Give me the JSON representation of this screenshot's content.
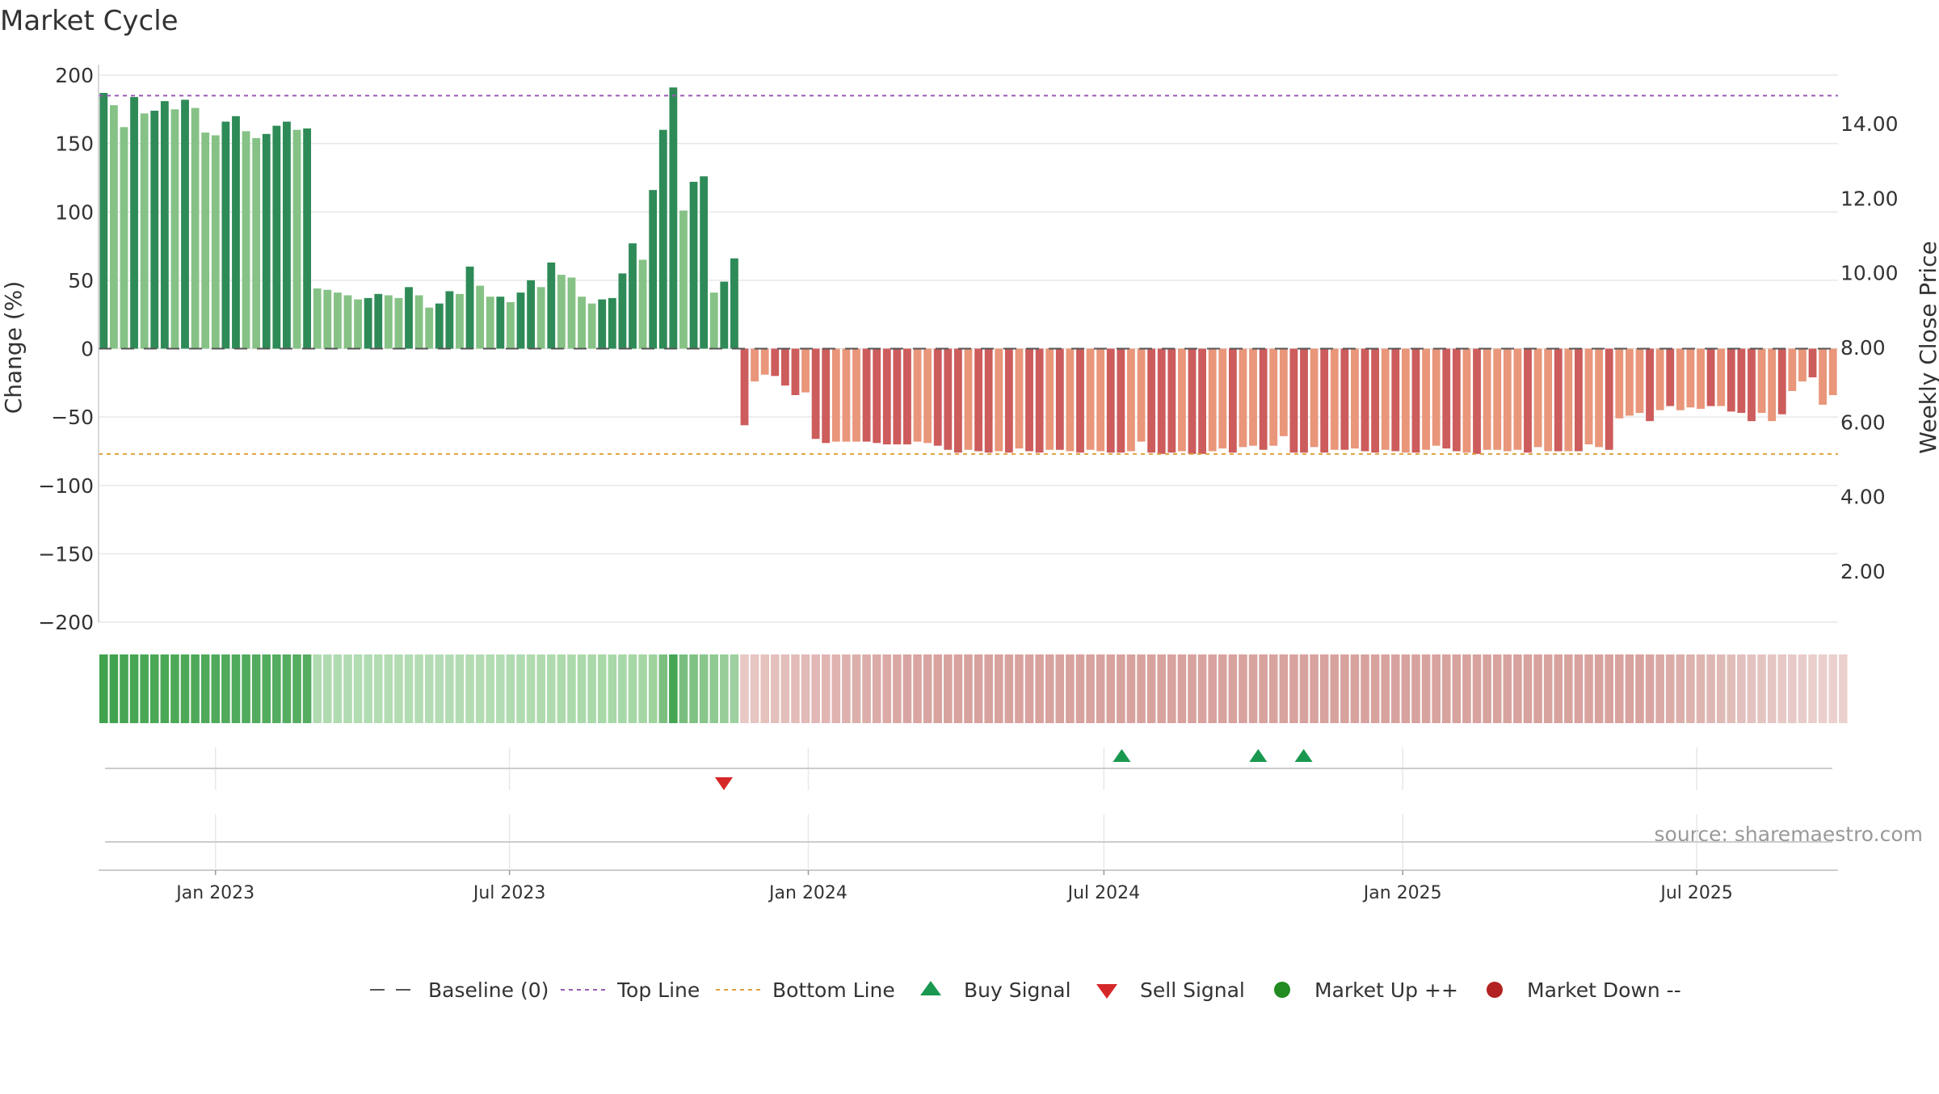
{
  "title": "Market Cycle",
  "source": "source: sharemaestro.com",
  "colors": {
    "up_dark": "#2e8b57",
    "up_light": "#86c286",
    "down_dark": "#cd5c5c",
    "down_light": "#e9967a",
    "top_line": "#9b59b6",
    "bottom_line": "#e0a040",
    "buy": "#1a9850",
    "sell": "#d62728",
    "market_up": "#228b22",
    "market_down": "#b22222",
    "grid": "#e8e8e8",
    "axis": "#cccccc"
  },
  "chart_data": {
    "type": "bar",
    "y_left": {
      "label": "Change (%)",
      "range": [
        -200,
        200
      ],
      "ticks": [
        200,
        150,
        100,
        50,
        0,
        -50,
        -100,
        -150,
        -200
      ],
      "tick_labels": [
        "200",
        "150",
        "100",
        "50",
        "0",
        "−50",
        "−100",
        "−150",
        "−200"
      ]
    },
    "y_right": {
      "label": "Weekly Close Price",
      "ticks": [
        14,
        12,
        10,
        8,
        6,
        4,
        2
      ],
      "tick_labels": [
        "14.00",
        "12.00",
        "10.00",
        "8.00",
        "6.00",
        "4.00",
        "2.00"
      ]
    },
    "x_ticks": [
      "Jan 2023",
      "Jul 2023",
      "Jan 2024",
      "Jul 2024",
      "Jan 2025",
      "Jul 2025"
    ],
    "x_tick_dates": [
      "2023-01-01",
      "2023-07-01",
      "2024-01-01",
      "2024-07-01",
      "2025-01-01",
      "2025-07-01"
    ],
    "x_start": "2022-10-21",
    "x_end": "2025-09-26",
    "top_line": 185,
    "bottom_line": -77,
    "baseline": 0,
    "grid": true,
    "series": [
      {
        "values": [
          187,
          178,
          162,
          184,
          172,
          174,
          181,
          175,
          182,
          176,
          158,
          156,
          166,
          170,
          159,
          154,
          157,
          163,
          166,
          160,
          161,
          44,
          43,
          41,
          39,
          36,
          37,
          40,
          39,
          37,
          45,
          39,
          30,
          33,
          42,
          40,
          60,
          46,
          38,
          38,
          34,
          41,
          50,
          45,
          63,
          54,
          52,
          38,
          33,
          36,
          37,
          55,
          77,
          65,
          116,
          160,
          191,
          101,
          122,
          126,
          41,
          49,
          66,
          -56,
          -24,
          -19,
          -20,
          -27,
          -34,
          -32,
          -66,
          -69,
          -68,
          -68,
          -68,
          -68,
          -69,
          -70,
          -70,
          -70,
          -68,
          -69,
          -71,
          -74,
          -76,
          -74,
          -75,
          -76,
          -75,
          -76,
          -73,
          -75,
          -76,
          -74,
          -74,
          -75,
          -76,
          -74,
          -75,
          -76,
          -76,
          -75,
          -68,
          -76,
          -77,
          -76,
          -75,
          -77,
          -77,
          -75,
          -73,
          -76,
          -72,
          -71,
          -74,
          -71,
          -64,
          -76,
          -76,
          -72,
          -76,
          -74,
          -74,
          -73,
          -75,
          -76,
          -74,
          -75,
          -76,
          -76,
          -74,
          -71,
          -73,
          -75,
          -76,
          -77,
          -74,
          -74,
          -75,
          -74,
          -76,
          -72,
          -75,
          -75,
          -75,
          -75,
          -70,
          -72,
          -74,
          -51,
          -49,
          -47,
          -53,
          -45,
          -42,
          -45,
          -43,
          -44,
          -42,
          -42,
          -46,
          -47,
          -53,
          -47,
          -53,
          -48,
          -31,
          -24,
          -21,
          -41,
          -34
        ],
        "shades": [
          1,
          0,
          0,
          1,
          0,
          1,
          1,
          0,
          1,
          0,
          0,
          0,
          1,
          1,
          0,
          0,
          1,
          1,
          1,
          0,
          1,
          0,
          0,
          0,
          0,
          0,
          1,
          1,
          0,
          0,
          1,
          0,
          0,
          1,
          1,
          0,
          1,
          0,
          0,
          1,
          0,
          1,
          1,
          0,
          1,
          0,
          0,
          0,
          0,
          1,
          1,
          1,
          1,
          0,
          1,
          1,
          1,
          0,
          1,
          1,
          0,
          1,
          1,
          1,
          0,
          0,
          1,
          1,
          1,
          0,
          1,
          1,
          0,
          0,
          0,
          1,
          1,
          1,
          1,
          1,
          0,
          0,
          1,
          1,
          1,
          0,
          1,
          1,
          0,
          1,
          0,
          1,
          1,
          0,
          1,
          0,
          1,
          0,
          0,
          1,
          1,
          0,
          0,
          1,
          1,
          1,
          0,
          1,
          1,
          0,
          0,
          1,
          0,
          0,
          1,
          0,
          0,
          1,
          1,
          0,
          1,
          0,
          1,
          0,
          1,
          1,
          0,
          1,
          0,
          1,
          0,
          0,
          1,
          1,
          0,
          1,
          0,
          0,
          0,
          0,
          1,
          0,
          0,
          1,
          0,
          1,
          0,
          0,
          1,
          0,
          0,
          0,
          1,
          0,
          1,
          0,
          0,
          0,
          1,
          0,
          1,
          1,
          1,
          0,
          0,
          1,
          0,
          0,
          1,
          0
        ]
      }
    ],
    "strip_colors": [
      "#3fa24c",
      "#42a34f",
      "#45a553",
      "#47a654",
      "#49a755",
      "#4aa856",
      "#4ba857",
      "#4ca958",
      "#4ca958",
      "#4da959",
      "#4ea95a",
      "#4faa5b",
      "#50aa5c",
      "#50ab5c",
      "#51ab5d",
      "#52ab5e",
      "#52ac5e",
      "#53ac5f",
      "#54ad60",
      "#54ad60",
      "#55ad61",
      "#b0dbb0",
      "#b0dbb0",
      "#b1dbb1",
      "#b1dbb1",
      "#b2dcb2",
      "#b2dcb2",
      "#b2dcb2",
      "#b3dcb3",
      "#b3dcb3",
      "#b3dcb3",
      "#b4dcb4",
      "#b4dcb4",
      "#b4dcb4",
      "#b4dcb4",
      "#b4dcb4",
      "#b3dcb3",
      "#b3dcb3",
      "#b2dcb2",
      "#b2dcb2",
      "#b1dbb1",
      "#b0dbb0",
      "#afdbaf",
      "#aedaae",
      "#aedaae",
      "#addaad",
      "#acdaac",
      "#abd9ab",
      "#aad9aa",
      "#a9d9a9",
      "#a8d8a8",
      "#a7d8a7",
      "#a6d7a6",
      "#a5d7a5",
      "#9ed39e",
      "#7bbf7f",
      "#44a553",
      "#79be7e",
      "#80c184",
      "#88c68b",
      "#8fca92",
      "#96cd98",
      "#9ed19f",
      "#e8c8c4",
      "#e7c5c1",
      "#e6c2be",
      "#e5c0bc",
      "#e4bebb",
      "#e3bcb9",
      "#e2bab7",
      "#e1b8b5",
      "#e0b5b2",
      "#dfb3b0",
      "#deb1ae",
      "#ddafac",
      "#dcadaa",
      "#dbaba8",
      "#dba9a6",
      "#daa7a4",
      "#d9a5a2",
      "#d9a4a1",
      "#d8a3a0",
      "#d8a29f",
      "#d8a29f",
      "#d8a29f",
      "#d8a29f",
      "#d8a29f",
      "#d8a29f",
      "#d8a29f",
      "#d8a29f",
      "#d8a29f",
      "#d8a29f",
      "#d8a29f",
      "#d8a29f",
      "#d8a29f",
      "#d8a29f",
      "#d8a29f",
      "#d8a29f",
      "#d8a29f",
      "#d8a29f",
      "#d8a29f",
      "#d8a29f",
      "#d8a29f",
      "#d8a29f",
      "#d8a29f",
      "#d8a29f",
      "#d8a29f",
      "#d8a29f",
      "#d8a29f",
      "#d8a29f",
      "#d8a29f",
      "#d8a29f",
      "#d8a29f",
      "#d8a29f",
      "#d8a29f",
      "#d8a29f",
      "#d8a29f",
      "#d8a29f",
      "#d8a29f",
      "#d8a29f",
      "#d8a29f",
      "#d8a29f",
      "#d8a29f",
      "#d8a29f",
      "#d8a29f",
      "#d8a29f",
      "#d8a29f",
      "#d8a29f",
      "#d8a29f",
      "#d8a29f",
      "#d8a29f",
      "#d8a29f",
      "#d8a29f",
      "#d8a29f",
      "#d8a29f",
      "#d8a29f",
      "#d8a29f",
      "#d8a29f",
      "#d8a29f",
      "#d8a29f",
      "#d8a29f",
      "#d8a29f",
      "#d8a29f",
      "#d8a29f",
      "#d8a29f",
      "#d8a29f",
      "#d8a29f",
      "#d8a29f",
      "#d8a29f",
      "#d8a29f",
      "#d8a29f",
      "#d8a29f",
      "#d9a5a2",
      "#daa8a5",
      "#dbaba8",
      "#dcaeab",
      "#ddb1ae",
      "#deb4b1",
      "#dfb7b4",
      "#e0bab7",
      "#e1bdba",
      "#e2c0bd",
      "#e3c2bf",
      "#e4c4c1",
      "#e5c6c3",
      "#e6c8c5",
      "#e7caC7",
      "#e8ccc9",
      "#e9cecb",
      "#eacfcc",
      "#ebd0cd",
      "#ebd1ce"
    ],
    "signals": {
      "buy": [
        "2024-07-12",
        "2024-10-04",
        "2024-11-01"
      ],
      "sell": [
        "2023-11-10"
      ]
    },
    "legend_position": "bottom-center",
    "legend": [
      {
        "kind": "dash",
        "label": "Baseline (0)"
      },
      {
        "kind": "dotted-top",
        "label": "Top Line"
      },
      {
        "kind": "dotted-bottom",
        "label": "Bottom Line"
      },
      {
        "kind": "buy",
        "label": "Buy Signal"
      },
      {
        "kind": "sell",
        "label": "Sell Signal"
      },
      {
        "kind": "up",
        "label": "Market Up ++"
      },
      {
        "kind": "down",
        "label": "Market Down --"
      }
    ]
  }
}
